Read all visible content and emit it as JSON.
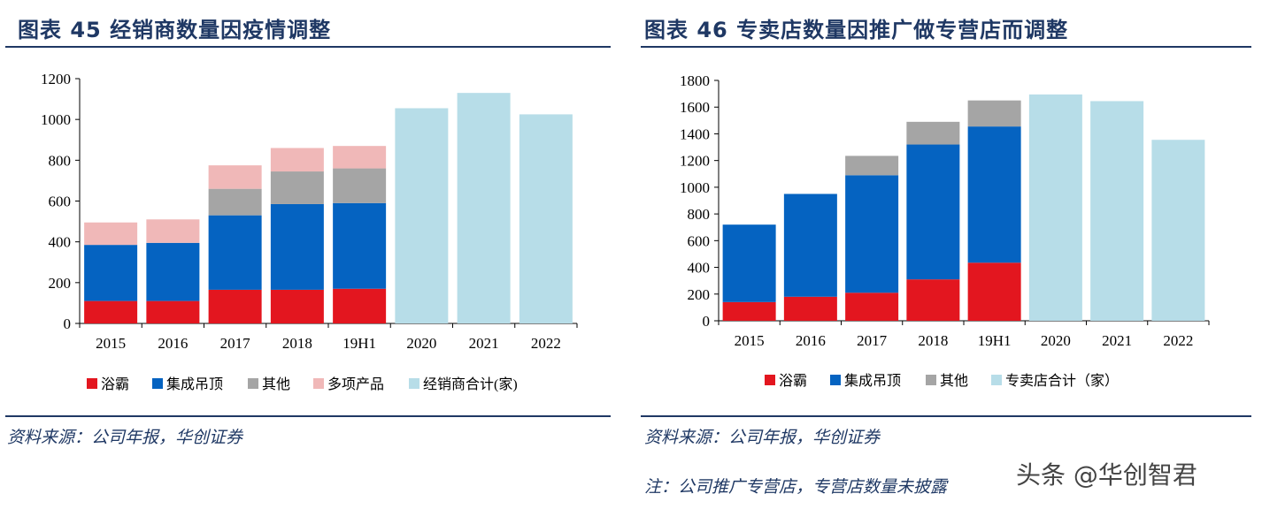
{
  "left": {
    "title": "图表 45   经销商数量因疫情调整",
    "source": "资料来源：公司年报，华创证券"
  },
  "right": {
    "title": "图表 46   专卖店数量因推广做专营店而调整",
    "source": "资料来源：公司年报，华创证券",
    "note": "注：公司推广专营店，专营店数量未披露"
  },
  "watermark": "头条 @华创智君",
  "colors": {
    "red": "#e3161f",
    "blue": "#0563c1",
    "gray": "#a5a5a5",
    "pink": "#f0b8b8",
    "lightblue": "#b7dde8",
    "navy": "#1f3864"
  },
  "chart_data": [
    {
      "type": "bar",
      "stacked": true,
      "title": "经销商数量因疫情调整",
      "categories": [
        "2015",
        "2016",
        "2017",
        "2018",
        "19H1",
        "2020",
        "2021",
        "2022"
      ],
      "series": [
        {
          "name": "浴霸",
          "values": [
            110,
            110,
            165,
            165,
            170,
            0,
            0,
            0
          ]
        },
        {
          "name": "集成吊顶",
          "values": [
            275,
            285,
            365,
            420,
            420,
            0,
            0,
            0
          ]
        },
        {
          "name": "其他",
          "values": [
            0,
            0,
            130,
            160,
            170,
            0,
            0,
            0
          ]
        },
        {
          "name": "多项产品",
          "values": [
            110,
            115,
            115,
            115,
            110,
            0,
            0,
            0
          ]
        },
        {
          "name": "经销商合计(家)",
          "values": [
            0,
            0,
            0,
            0,
            0,
            1055,
            1130,
            1025
          ]
        }
      ],
      "ylim": [
        0,
        1200
      ],
      "yticks": [
        0,
        200,
        400,
        600,
        800,
        1000,
        1200
      ],
      "legend": "bottom"
    },
    {
      "type": "bar",
      "stacked": true,
      "title": "专卖店数量因推广做专营店而调整",
      "categories": [
        "2015",
        "2016",
        "2017",
        "2018",
        "19H1",
        "2020",
        "2021",
        "2022"
      ],
      "series": [
        {
          "name": "浴霸",
          "values": [
            140,
            180,
            210,
            310,
            435,
            0,
            0,
            0
          ]
        },
        {
          "name": "集成吊顶",
          "values": [
            580,
            770,
            880,
            1010,
            1020,
            0,
            0,
            0
          ]
        },
        {
          "name": "其他",
          "values": [
            0,
            0,
            145,
            170,
            195,
            0,
            0,
            0
          ]
        },
        {
          "name": "专卖店合计（家）",
          "values": [
            0,
            0,
            0,
            0,
            0,
            1695,
            1645,
            1355
          ]
        }
      ],
      "ylim": [
        0,
        1800
      ],
      "yticks": [
        0,
        200,
        400,
        600,
        800,
        1000,
        1200,
        1400,
        1600,
        1800
      ],
      "legend": "bottom"
    }
  ]
}
